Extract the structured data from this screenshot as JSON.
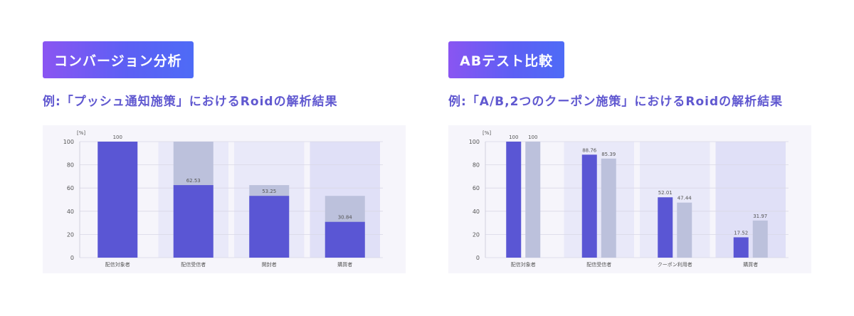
{
  "panels": [
    {
      "badge": "コンバージョン分析",
      "subtitle": "例:「プッシュ通知施策」におけるRoidの解析結果"
    },
    {
      "badge": "ABテスト比較",
      "subtitle": "例:「A/B,2つのクーポン施策」におけるRoidの解析結果"
    }
  ],
  "colors": {
    "bar_primary": "#5a56d4",
    "bar_secondary": "#bcc1dc",
    "band": "#e6e6f8",
    "band_dark": "#dcdcf6"
  },
  "chart_data": [
    {
      "type": "bar",
      "ylabel": "[%]",
      "ylim": [
        0,
        100
      ],
      "yticks": [
        "0",
        "20",
        "40",
        "60",
        "80",
        "100"
      ],
      "categories": [
        "配信対象者",
        "配信受信者",
        "開封者",
        "購買者"
      ],
      "series": [
        {
          "values": [
            100,
            62.53,
            53.25,
            30.84
          ]
        }
      ],
      "value_labels": [
        "100",
        "62.53",
        "53.25",
        "30.84"
      ],
      "background_bars": [
        null,
        100,
        62.53,
        53.25
      ]
    },
    {
      "type": "bar",
      "ylabel": "[%]",
      "ylim": [
        0,
        100
      ],
      "yticks": [
        "0",
        "20",
        "40",
        "60",
        "80",
        "100"
      ],
      "categories": [
        "配信対象者",
        "配信受信者",
        "クーポン利用者",
        "購買者"
      ],
      "series": [
        {
          "values": [
            100,
            88.76,
            52.01,
            17.52
          ]
        },
        {
          "values": [
            100,
            85.39,
            47.44,
            31.97
          ]
        }
      ],
      "value_labels": [
        [
          "100",
          "88.76",
          "52.01",
          "17.52"
        ],
        [
          "100",
          "85.39",
          "47.44",
          "31.97"
        ]
      ]
    }
  ]
}
